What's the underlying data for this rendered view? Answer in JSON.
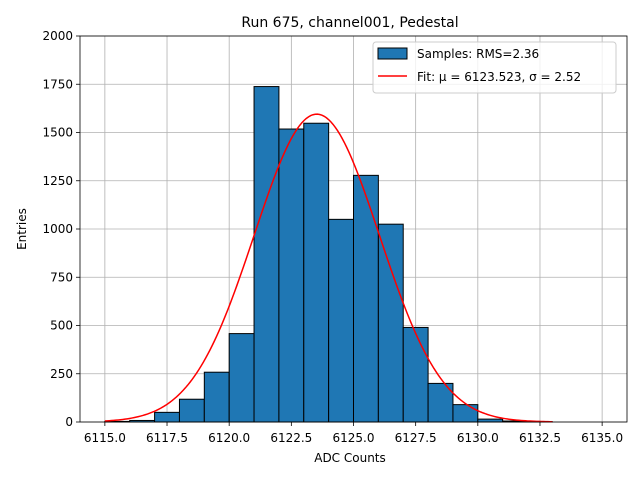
{
  "chart_data": {
    "type": "bar",
    "title": "Run 675, channel001, Pedestal",
    "xlabel": "ADC Counts",
    "ylabel": "Entries",
    "xlim": [
      6114.0,
      6136.0
    ],
    "ylim": [
      0,
      2000
    ],
    "grid": true,
    "legend_position": "top-right",
    "x_ticks": [
      6115.0,
      6117.5,
      6120.0,
      6122.5,
      6125.0,
      6127.5,
      6130.0,
      6132.5,
      6135.0
    ],
    "x_tick_labels": [
      "6115.0",
      "6117.5",
      "6120.0",
      "6122.5",
      "6125.0",
      "6127.5",
      "6130.0",
      "6132.5",
      "6135.0"
    ],
    "y_ticks": [
      0,
      250,
      500,
      750,
      1000,
      1250,
      1500,
      1750,
      2000
    ],
    "y_tick_labels": [
      "0",
      "250",
      "500",
      "750",
      "1000",
      "1250",
      "1500",
      "1750",
      "2000"
    ],
    "bin_edges": [
      6115,
      6116,
      6117,
      6118,
      6119,
      6120,
      6121,
      6122,
      6123,
      6124,
      6125,
      6126,
      6127,
      6128,
      6129,
      6130,
      6131,
      6132,
      6133,
      6134
    ],
    "series": [
      {
        "name": "Samples",
        "kind": "histogram",
        "legend_label": "Samples: RMS=2.36",
        "values": [
          3,
          8,
          50,
          118,
          258,
          458,
          1738,
          1518,
          1548,
          1050,
          1278,
          1025,
          490,
          200,
          90,
          15,
          5,
          1,
          0
        ],
        "color": "#1f77b4",
        "edge_color": "#000000"
      },
      {
        "name": "Fit",
        "kind": "gaussian",
        "legend_label": "Fit: μ = 6123.523, σ = 2.52",
        "mu": 6123.523,
        "sigma": 2.52,
        "amplitude": 1595,
        "x_range": [
          6115,
          6133
        ],
        "color": "#ff0000"
      }
    ]
  }
}
